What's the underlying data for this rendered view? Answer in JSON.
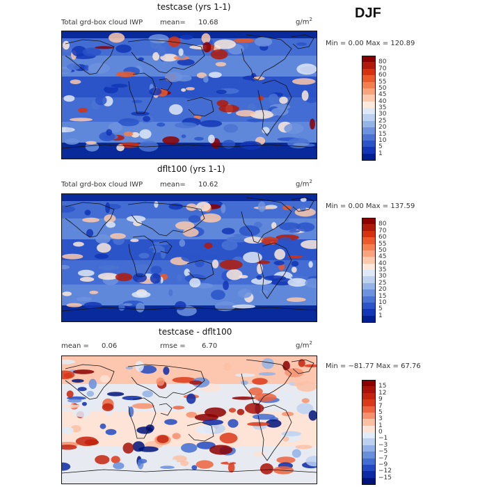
{
  "season": "DJF",
  "panels": [
    {
      "title": "testcase (yrs 1-1)",
      "variable": "Total grd-box cloud IWP",
      "mean_label": "mean=",
      "mean_value": "10.68",
      "rmse_label": "",
      "rmse_value": "",
      "units_base": "g/m",
      "units_exp": "2",
      "range_text": "Min =    0.00 Max = 120.89",
      "colorbar": {
        "labels": [
          "80",
          "70",
          "60",
          "55",
          "50",
          "45",
          "40",
          "35",
          "30",
          "25",
          "20",
          "15",
          "10",
          "5",
          "1"
        ],
        "colors": [
          "#8b0000",
          "#b01a0a",
          "#d6320f",
          "#ea5a2a",
          "#f4804f",
          "#f9a47d",
          "#fcc9ac",
          "#fce9dc",
          "#dfe8f6",
          "#bcd0ef",
          "#94b3e6",
          "#6d93de",
          "#4a73d4",
          "#2a54c8",
          "#1236b6",
          "#001f90"
        ]
      },
      "map_theme": "iwp"
    },
    {
      "title": "dflt100 (yrs 1-1)",
      "variable": "Total grd-box cloud IWP",
      "mean_label": "mean=",
      "mean_value": "10.62",
      "rmse_label": "",
      "rmse_value": "",
      "units_base": "g/m",
      "units_exp": "2",
      "range_text": "Min =    0.00 Max = 137.59",
      "colorbar": {
        "labels": [
          "80",
          "70",
          "60",
          "55",
          "50",
          "45",
          "40",
          "35",
          "30",
          "25",
          "20",
          "15",
          "10",
          "5",
          "1"
        ],
        "colors": [
          "#8b0000",
          "#b01a0a",
          "#d6320f",
          "#ea5a2a",
          "#f4804f",
          "#f9a47d",
          "#fcc9ac",
          "#fce9dc",
          "#dfe8f6",
          "#bcd0ef",
          "#94b3e6",
          "#6d93de",
          "#4a73d4",
          "#2a54c8",
          "#1236b6",
          "#001f90"
        ]
      },
      "map_theme": "iwp"
    },
    {
      "title": "testcase - dflt100",
      "variable": "",
      "mean_label": "mean =",
      "mean_value": "0.06",
      "rmse_label": "rmse =",
      "rmse_value": "6.70",
      "units_base": "g/m",
      "units_exp": "2",
      "range_text": "Min = −81.77 Max =  67.76",
      "colorbar": {
        "labels": [
          "15",
          "12",
          "9",
          "7",
          "5",
          "3",
          "1",
          "0",
          "−1",
          "−3",
          "−5",
          "−7",
          "−9",
          "−12",
          "−15"
        ],
        "colors": [
          "#8b0000",
          "#a81208",
          "#c4230d",
          "#db3a1a",
          "#ec6440",
          "#f6916e",
          "#fbbfa4",
          "#fde3d6",
          "#e2ebf8",
          "#bcd1f0",
          "#91b1e6",
          "#678fdc",
          "#426dd1",
          "#2249c2",
          "#0c2aa6",
          "#00137a"
        ]
      },
      "map_theme": "diff"
    }
  ],
  "chart_data": [
    {
      "type": "heatmap",
      "title": "testcase (yrs 1-1)",
      "variable": "Total grd-box cloud IWP",
      "mean": 10.68,
      "min": 0.0,
      "max": 120.89,
      "units": "g/m2",
      "contour_levels": [
        1,
        5,
        10,
        15,
        20,
        25,
        30,
        35,
        40,
        45,
        50,
        55,
        60,
        70,
        80
      ]
    },
    {
      "type": "heatmap",
      "title": "dflt100 (yrs 1-1)",
      "variable": "Total grd-box cloud IWP",
      "mean": 10.62,
      "min": 0.0,
      "max": 137.59,
      "units": "g/m2",
      "contour_levels": [
        1,
        5,
        10,
        15,
        20,
        25,
        30,
        35,
        40,
        45,
        50,
        55,
        60,
        70,
        80
      ]
    },
    {
      "type": "heatmap",
      "title": "testcase - dflt100",
      "mean": 0.06,
      "rmse": 6.7,
      "min": -81.77,
      "max": 67.76,
      "units": "g/m2",
      "contour_levels": [
        -15,
        -12,
        -9,
        -7,
        -5,
        -3,
        -1,
        0,
        1,
        3,
        5,
        7,
        9,
        12,
        15
      ]
    }
  ]
}
